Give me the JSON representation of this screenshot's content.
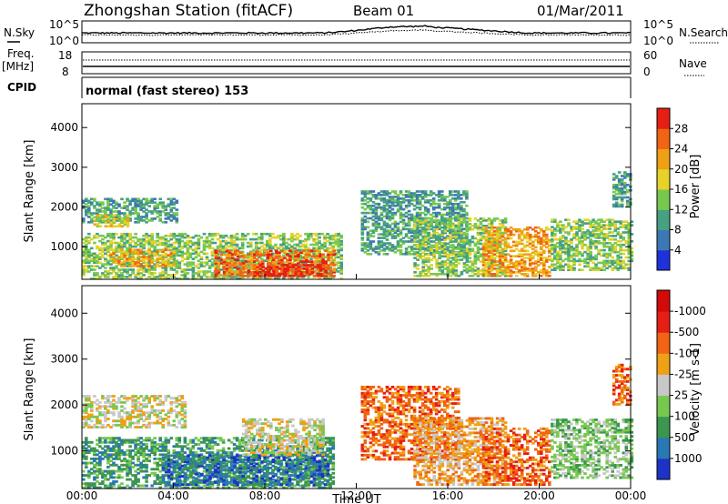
{
  "header": {
    "title": "Zhongshan Station (fitACF)",
    "beam": "Beam 01",
    "date": "01/Mar/2011"
  },
  "noise_panel": {
    "left_label": "N.Sky",
    "right_label": "N.Search",
    "left_ticks": [
      "10^5",
      "10^0"
    ],
    "right_ticks": [
      "10^5",
      "10^0"
    ]
  },
  "freq_panel": {
    "left_label_1": "Freq.",
    "left_label_2": "[MHz]",
    "right_label": "Nave",
    "left_ticks": [
      "18",
      "8"
    ],
    "right_ticks": [
      "60",
      "0"
    ]
  },
  "cpid_panel": {
    "label": "CPID",
    "text": "normal (fast stereo) 153"
  },
  "time_axis": {
    "label": "Time UT",
    "ticks": [
      "00:00",
      "04:00",
      "08:00",
      "12:00",
      "16:00",
      "20:00",
      "00:00"
    ]
  },
  "chart_data": [
    {
      "type": "heatmap",
      "title": "Power",
      "ylabel": "Slant Range [km]",
      "xlabel": "Time UT",
      "y_ticks": [
        "1000",
        "2000",
        "3000",
        "4000"
      ],
      "ylim": [
        180,
        4600
      ],
      "xlim": [
        "00:00",
        "24:00"
      ],
      "colorbar": {
        "label": "Power [dB]",
        "ticks": [
          "4",
          "8",
          "12",
          "16",
          "20",
          "24",
          "28"
        ],
        "colors": [
          "#1e32dc",
          "#3c78b4",
          "#46a082",
          "#78c850",
          "#e6d228",
          "#f0a014",
          "#f06414",
          "#e61e14"
        ]
      },
      "regions": [
        {
          "t0": 0.0,
          "t1": 4.2,
          "r0": 1600,
          "r1": 2200,
          "level": 2
        },
        {
          "t0": 0.5,
          "t1": 2.0,
          "r0": 1500,
          "r1": 1800,
          "level": 4
        },
        {
          "t0": 0.0,
          "t1": 11.3,
          "r0": 180,
          "r1": 1350,
          "level": 3
        },
        {
          "t0": 5.8,
          "t1": 11.0,
          "r0": 250,
          "r1": 900,
          "level": 6
        },
        {
          "t0": 7.5,
          "t1": 10.8,
          "r0": 250,
          "r1": 550,
          "level": 7
        },
        {
          "t0": 1.2,
          "t1": 4.0,
          "r0": 500,
          "r1": 950,
          "level": 5
        },
        {
          "t0": 12.2,
          "t1": 16.8,
          "r0": 800,
          "r1": 2400,
          "level": 2
        },
        {
          "t0": 14.5,
          "t1": 18.5,
          "r0": 250,
          "r1": 1700,
          "level": 3
        },
        {
          "t0": 17.5,
          "t1": 20.5,
          "r0": 250,
          "r1": 1500,
          "level": 5
        },
        {
          "t0": 20.5,
          "t1": 24.0,
          "r0": 400,
          "r1": 1700,
          "level": 3
        },
        {
          "t0": 23.2,
          "t1": 24.0,
          "r0": 2000,
          "r1": 2900,
          "level": 2
        }
      ]
    },
    {
      "type": "heatmap",
      "title": "Velocity",
      "ylabel": "Slant Range [km]",
      "xlabel": "Time UT",
      "y_ticks": [
        "1000",
        "2000",
        "3000",
        "4000"
      ],
      "ylim": [
        180,
        4600
      ],
      "xlim": [
        "00:00",
        "24:00"
      ],
      "colorbar": {
        "label": "Velocity [m s-1]",
        "ticks": [
          "1000",
          "500",
          "100",
          "25",
          "-25",
          "-100",
          "-500",
          "-1000"
        ],
        "colors": [
          "#1e32c8",
          "#2878b4",
          "#3c9650",
          "#78c850",
          "#c8c8c8",
          "#f0a014",
          "#f06414",
          "#e61e14",
          "#d20a0a"
        ]
      },
      "regions": [
        {
          "t0": 0.0,
          "t1": 4.5,
          "r0": 1500,
          "r1": 2200,
          "level": 4
        },
        {
          "t0": 0.0,
          "t1": 11.0,
          "r0": 180,
          "r1": 1300,
          "level": 2
        },
        {
          "t0": 3.5,
          "t1": 10.8,
          "r0": 250,
          "r1": 900,
          "level": 1
        },
        {
          "t0": 7.0,
          "t1": 10.5,
          "r0": 900,
          "r1": 1700,
          "level": 4
        },
        {
          "t0": 12.2,
          "t1": 16.5,
          "r0": 800,
          "r1": 2400,
          "level": 6
        },
        {
          "t0": 14.5,
          "t1": 18.5,
          "r0": 250,
          "r1": 1700,
          "level": 5
        },
        {
          "t0": 17.5,
          "t1": 20.5,
          "r0": 250,
          "r1": 1500,
          "level": 6
        },
        {
          "t0": 20.5,
          "t1": 24.0,
          "r0": 400,
          "r1": 1700,
          "level": 3
        },
        {
          "t0": 23.2,
          "t1": 24.0,
          "r0": 2000,
          "r1": 2900,
          "level": 6
        }
      ]
    }
  ]
}
